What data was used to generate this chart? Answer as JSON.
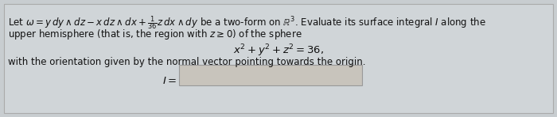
{
  "bg_color": "#c8cdd0",
  "inner_bg": "#d0d5d8",
  "text_color": "#111111",
  "fig_width": 7.0,
  "fig_height": 1.48,
  "line1": "Let $\\omega = y\\,dy \\wedge dz - x\\,dz \\wedge dx + \\frac{1}{36}z\\,dx \\wedge dy$ be a two-form on $\\mathbb{R}^3$. Evaluate its surface integral $I$ along the",
  "line2": "upper hemisphere (that is, the region with $z \\geq 0$) of the sphere",
  "equation": "$x^2 + y^2 + z^2 = 36,$",
  "line3": "with the orientation given by the normal vector pointing towards the origin.",
  "answer_label": "$I =$",
  "font_size": 8.5,
  "eq_font_size": 9.5
}
